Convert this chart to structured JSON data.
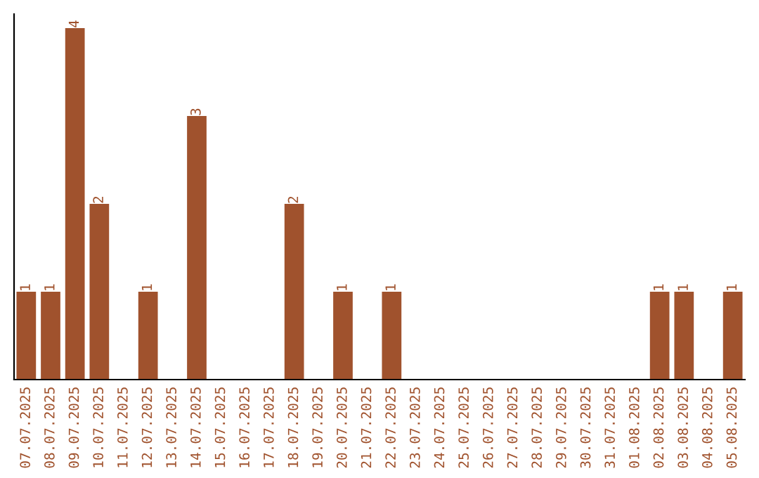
{
  "chart_data": {
    "type": "bar",
    "categories": [
      "07.07.2025",
      "08.07.2025",
      "09.07.2025",
      "10.07.2025",
      "11.07.2025",
      "12.07.2025",
      "13.07.2025",
      "14.07.2025",
      "15.07.2025",
      "16.07.2025",
      "17.07.2025",
      "18.07.2025",
      "19.07.2025",
      "20.07.2025",
      "21.07.2025",
      "22.07.2025",
      "23.07.2025",
      "24.07.2025",
      "25.07.2025",
      "26.07.2025",
      "27.07.2025",
      "28.07.2025",
      "29.07.2025",
      "30.07.2025",
      "31.07.2025",
      "01.08.2025",
      "02.08.2025",
      "03.08.2025",
      "04.08.2025",
      "05.08.2025"
    ],
    "values": [
      1,
      1,
      4,
      2,
      0,
      1,
      0,
      3,
      0,
      0,
      0,
      2,
      0,
      1,
      0,
      1,
      0,
      0,
      0,
      0,
      0,
      0,
      0,
      0,
      0,
      0,
      1,
      1,
      0,
      1
    ],
    "value_labels": [
      "1",
      "1",
      "4",
      "2",
      null,
      "1",
      null,
      "3",
      null,
      null,
      null,
      "2",
      null,
      "1",
      null,
      "1",
      null,
      null,
      null,
      null,
      null,
      null,
      null,
      null,
      null,
      null,
      "1",
      "1",
      null,
      "1"
    ],
    "color": "#a0522d",
    "tick_labels": "x",
    "grid": false,
    "legend": false
  }
}
